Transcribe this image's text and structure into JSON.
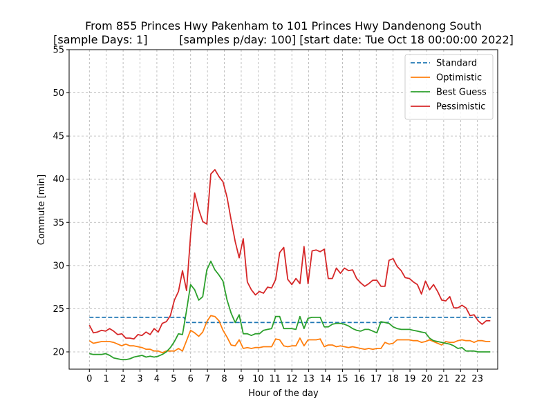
{
  "chart_data": {
    "type": "line",
    "title_line1": "From 855 Princes Hwy Pakenham to 101 Princes Hwy Dandenong South",
    "title_line2": "[sample Days: 1]         [samples p/day: 100] [start date: Tue Oct 18 00:00:00 2022]",
    "xlabel": "Hour of the day",
    "ylabel": "Commute [min]",
    "xlim": [
      -1.2,
      24.2
    ],
    "ylim": [
      18.0,
      55.0
    ],
    "xticks": [
      0,
      1,
      2,
      3,
      4,
      5,
      6,
      7,
      8,
      9,
      10,
      11,
      12,
      13,
      14,
      15,
      16,
      17,
      18,
      19,
      20,
      21,
      22,
      23
    ],
    "yticks": [
      20,
      25,
      30,
      35,
      40,
      45,
      50,
      55
    ],
    "grid": true,
    "legend_position": "top-right",
    "series": [
      {
        "name": "Standard",
        "color": "#1f77b4",
        "dashed": true,
        "x": [
          0,
          5.6,
          5.76,
          17.7,
          17.86,
          23.8
        ],
        "y": [
          24.0,
          24.0,
          23.4,
          23.4,
          24.0,
          24.0
        ]
      },
      {
        "name": "Optimistic",
        "color": "#ff7f0e",
        "dashed": false,
        "x": [
          0,
          0.24,
          0.48,
          0.72,
          0.96,
          1.2,
          1.44,
          1.68,
          1.92,
          2.16,
          2.4,
          2.64,
          2.88,
          3.12,
          3.36,
          3.6,
          3.84,
          4.08,
          4.32,
          4.56,
          4.8,
          5.04,
          5.28,
          5.52,
          5.76,
          6.0,
          6.24,
          6.48,
          6.72,
          6.96,
          7.2,
          7.44,
          7.68,
          7.92,
          8.16,
          8.4,
          8.64,
          8.88,
          9.12,
          9.36,
          9.6,
          9.84,
          10.08,
          10.32,
          10.56,
          10.8,
          11.04,
          11.28,
          11.52,
          11.76,
          12.0,
          12.24,
          12.48,
          12.72,
          12.96,
          13.2,
          13.44,
          13.68,
          13.92,
          14.16,
          14.4,
          14.64,
          14.88,
          15.12,
          15.36,
          15.6,
          15.84,
          16.08,
          16.32,
          16.56,
          16.8,
          17.04,
          17.28,
          17.52,
          17.76,
          18.0,
          18.24,
          18.48,
          18.72,
          18.96,
          19.2,
          19.44,
          19.68,
          19.92,
          20.16,
          20.4,
          20.64,
          20.88,
          21.12,
          21.36,
          21.6,
          21.84,
          22.08,
          22.32,
          22.56,
          22.8,
          23.04,
          23.28,
          23.52,
          23.76
        ],
        "y": [
          21.3,
          21.0,
          21.1,
          21.2,
          21.2,
          21.2,
          21.1,
          20.9,
          20.7,
          20.9,
          20.7,
          20.7,
          20.6,
          20.5,
          20.3,
          20.3,
          20.1,
          20.1,
          19.9,
          20.1,
          20.1,
          20.1,
          20.4,
          20.1,
          21.3,
          22.5,
          22.2,
          21.8,
          22.3,
          23.5,
          24.2,
          24.1,
          23.6,
          22.5,
          21.7,
          20.8,
          20.7,
          21.4,
          20.4,
          20.5,
          20.4,
          20.5,
          20.5,
          20.6,
          20.6,
          20.6,
          21.5,
          21.4,
          20.7,
          20.6,
          20.7,
          20.7,
          21.6,
          20.7,
          21.4,
          21.4,
          21.4,
          21.5,
          20.6,
          20.8,
          20.8,
          20.6,
          20.7,
          20.6,
          20.5,
          20.6,
          20.5,
          20.4,
          20.3,
          20.4,
          20.3,
          20.4,
          20.4,
          21.1,
          20.9,
          21.0,
          21.4,
          21.4,
          21.4,
          21.4,
          21.3,
          21.3,
          21.1,
          21.2,
          21.4,
          21.2,
          21.0,
          20.8,
          21.2,
          21.1,
          21.1,
          21.3,
          21.4,
          21.3,
          21.3,
          21.1,
          21.3,
          21.3,
          21.2,
          21.2
        ]
      },
      {
        "name": "Best Guess",
        "color": "#2ca02c",
        "dashed": false,
        "x": [
          0,
          0.24,
          0.48,
          0.72,
          0.96,
          1.2,
          1.44,
          1.68,
          1.92,
          2.16,
          2.4,
          2.64,
          2.88,
          3.12,
          3.36,
          3.6,
          3.84,
          4.08,
          4.32,
          4.56,
          4.8,
          5.04,
          5.28,
          5.52,
          5.76,
          6.0,
          6.24,
          6.48,
          6.72,
          6.96,
          7.2,
          7.44,
          7.68,
          7.92,
          8.16,
          8.4,
          8.64,
          8.88,
          9.12,
          9.36,
          9.6,
          9.84,
          10.08,
          10.32,
          10.56,
          10.8,
          11.04,
          11.28,
          11.52,
          11.76,
          12.0,
          12.24,
          12.48,
          12.72,
          12.96,
          13.2,
          13.44,
          13.68,
          13.92,
          14.16,
          14.4,
          14.64,
          14.88,
          15.12,
          15.36,
          15.6,
          15.84,
          16.08,
          16.32,
          16.56,
          16.8,
          17.04,
          17.28,
          17.52,
          17.76,
          18.0,
          18.24,
          18.48,
          18.72,
          18.96,
          19.2,
          19.44,
          19.68,
          19.92,
          20.16,
          20.4,
          20.64,
          20.88,
          21.12,
          21.36,
          21.6,
          21.84,
          22.08,
          22.32,
          22.56,
          22.8,
          23.04,
          23.28,
          23.52,
          23.76
        ],
        "y": [
          19.8,
          19.7,
          19.7,
          19.7,
          19.8,
          19.6,
          19.3,
          19.2,
          19.1,
          19.1,
          19.2,
          19.4,
          19.5,
          19.6,
          19.4,
          19.5,
          19.4,
          19.5,
          19.7,
          20.0,
          20.5,
          21.2,
          22.1,
          22.0,
          24.8,
          27.8,
          27.2,
          26.0,
          26.4,
          29.5,
          30.5,
          29.5,
          28.9,
          28.2,
          26.0,
          24.5,
          23.4,
          24.3,
          22.1,
          22.1,
          21.9,
          22.1,
          22.1,
          22.5,
          22.6,
          22.7,
          24.1,
          24.1,
          22.7,
          22.7,
          22.7,
          22.6,
          24.1,
          22.7,
          23.9,
          24.0,
          24.0,
          24.0,
          22.9,
          22.9,
          23.2,
          23.3,
          23.3,
          23.2,
          23.0,
          22.7,
          22.5,
          22.4,
          22.6,
          22.6,
          22.4,
          22.2,
          23.5,
          23.4,
          23.3,
          22.9,
          22.7,
          22.6,
          22.6,
          22.6,
          22.5,
          22.4,
          22.3,
          22.2,
          21.6,
          21.3,
          21.2,
          21.1,
          21.0,
          20.9,
          20.7,
          20.4,
          20.5,
          20.1,
          20.1,
          20.1,
          20.0,
          20.0,
          20.0,
          20.0
        ]
      },
      {
        "name": "Pessimistic",
        "color": "#d62728",
        "dashed": false,
        "x": [
          0,
          0.24,
          0.48,
          0.72,
          0.96,
          1.2,
          1.44,
          1.68,
          1.92,
          2.16,
          2.4,
          2.64,
          2.88,
          3.12,
          3.36,
          3.6,
          3.84,
          4.08,
          4.32,
          4.56,
          4.8,
          5.04,
          5.28,
          5.52,
          5.76,
          6.0,
          6.24,
          6.48,
          6.72,
          6.96,
          7.2,
          7.44,
          7.68,
          7.92,
          8.16,
          8.4,
          8.64,
          8.88,
          9.12,
          9.36,
          9.6,
          9.84,
          10.08,
          10.32,
          10.56,
          10.8,
          11.04,
          11.28,
          11.52,
          11.76,
          12.0,
          12.24,
          12.48,
          12.72,
          12.96,
          13.2,
          13.44,
          13.68,
          13.92,
          14.16,
          14.4,
          14.64,
          14.88,
          15.12,
          15.36,
          15.6,
          15.84,
          16.08,
          16.32,
          16.56,
          16.8,
          17.04,
          17.28,
          17.52,
          17.76,
          18.0,
          18.24,
          18.48,
          18.72,
          18.96,
          19.2,
          19.44,
          19.68,
          19.92,
          20.16,
          20.4,
          20.64,
          20.88,
          21.12,
          21.36,
          21.6,
          21.84,
          22.08,
          22.32,
          22.56,
          22.8,
          23.04,
          23.28,
          23.52,
          23.76
        ],
        "y": [
          23.1,
          22.2,
          22.3,
          22.5,
          22.4,
          22.7,
          22.4,
          22.0,
          22.1,
          21.6,
          21.6,
          21.5,
          22.0,
          21.9,
          22.3,
          22.0,
          22.7,
          22.3,
          23.3,
          23.5,
          24.2,
          26.0,
          27.0,
          29.4,
          27.1,
          33.5,
          38.4,
          36.5,
          35.1,
          34.8,
          40.6,
          41.1,
          40.3,
          39.7,
          37.9,
          35.3,
          32.8,
          30.9,
          33.1,
          28.1,
          27.2,
          26.6,
          27.0,
          26.8,
          27.5,
          27.4,
          28.4,
          31.5,
          32.1,
          28.4,
          27.8,
          28.5,
          27.9,
          32.2,
          27.9,
          31.7,
          31.8,
          31.6,
          31.9,
          28.5,
          28.5,
          29.7,
          29.1,
          29.7,
          29.4,
          29.5,
          28.5,
          28.0,
          27.6,
          27.9,
          28.3,
          28.3,
          27.6,
          27.6,
          30.6,
          30.8,
          29.9,
          29.4,
          28.6,
          28.5,
          28.1,
          27.8,
          26.7,
          28.2,
          27.2,
          27.8,
          27.0,
          26.0,
          25.9,
          26.4,
          25.1,
          25.1,
          25.4,
          25.1,
          24.2,
          24.3,
          23.6,
          23.2,
          23.6,
          23.6
        ]
      }
    ]
  }
}
